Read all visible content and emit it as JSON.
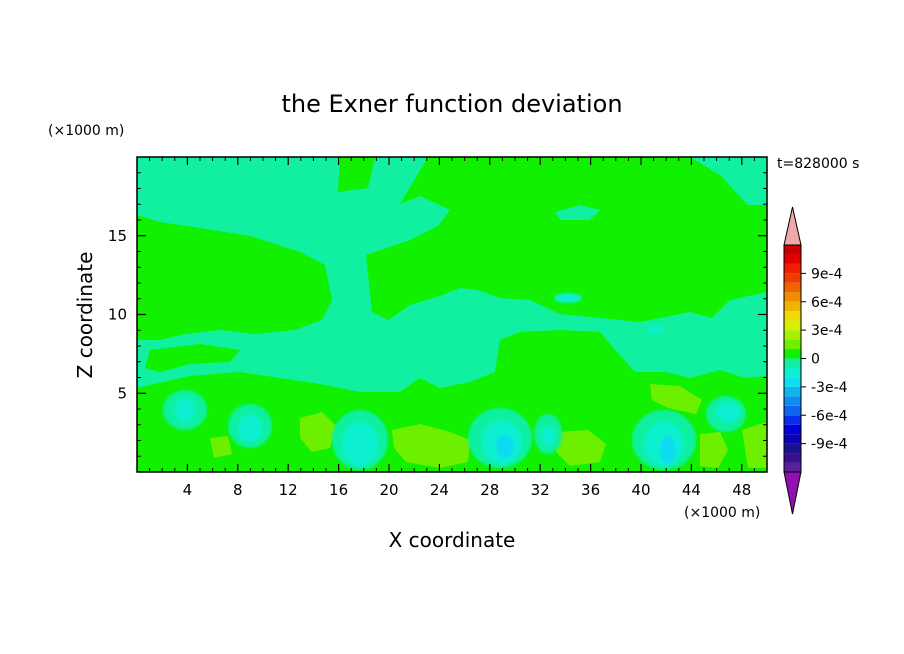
{
  "chart_data": {
    "type": "heatmap",
    "title": "the Exner function deviation",
    "time_label": "t=828000 s",
    "xlabel": "X coordinate",
    "ylabel": "Z coordinate",
    "x_unit": "(×1000 m)",
    "y_unit": "(×1000 m)",
    "xlim": [
      0,
      50
    ],
    "ylim": [
      0,
      20
    ],
    "x_ticks": [
      4,
      8,
      12,
      16,
      20,
      24,
      28,
      32,
      36,
      40,
      44,
      48
    ],
    "y_ticks": [
      5,
      10,
      15
    ],
    "colorbar": {
      "levels": [
        -0.0012,
        -0.0011,
        -0.001,
        -0.0009,
        -0.0008,
        -0.0007,
        -0.0006,
        -0.0005,
        -0.0004,
        -0.0003,
        -0.0002,
        -0.0001,
        0,
        0.0001,
        0.0002,
        0.0003,
        0.0004,
        0.0005,
        0.0006,
        0.0007,
        0.0008,
        0.0009,
        0.001,
        0.0011,
        0.0012
      ],
      "colors": [
        "#5a1fa0",
        "#3a0f8a",
        "#1a0f8c",
        "#0a00b4",
        "#0000d8",
        "#0a2cf0",
        "#1064f0",
        "#108cf0",
        "#10b4f0",
        "#10dcf0",
        "#10f0d0",
        "#10f0a0",
        "#10f000",
        "#6cf000",
        "#a8f000",
        "#d8f000",
        "#f0dc00",
        "#f0b400",
        "#f08c00",
        "#f06400",
        "#f03c00",
        "#f01e00",
        "#e00000",
        "#c80000"
      ],
      "tick_labels": [
        "-9e-4",
        "-6e-4",
        "-3e-4",
        "0",
        "3e-4",
        "6e-4",
        "9e-4"
      ],
      "tick_values": [
        -0.0009,
        -0.0006,
        -0.0003,
        0,
        0.0003,
        0.0006,
        0.0009
      ],
      "under_color": "#9010b0",
      "over_color": "#f0a8a8"
    },
    "field_regions": [
      {
        "level": 5e-05,
        "color": "#10f0a0",
        "comment": "background band"
      },
      {
        "level": 0.00015,
        "color": "#10f000",
        "comment": "upper green patch"
      },
      {
        "level": -0.00015,
        "color": "#10f0d0",
        "comment": "cyan cells"
      },
      {
        "level": -0.00035,
        "color": "#10dcf0",
        "comment": "blue cores"
      },
      {
        "level": 0.00025,
        "color": "#6cf000",
        "comment": "yellow-green lobes"
      }
    ]
  }
}
